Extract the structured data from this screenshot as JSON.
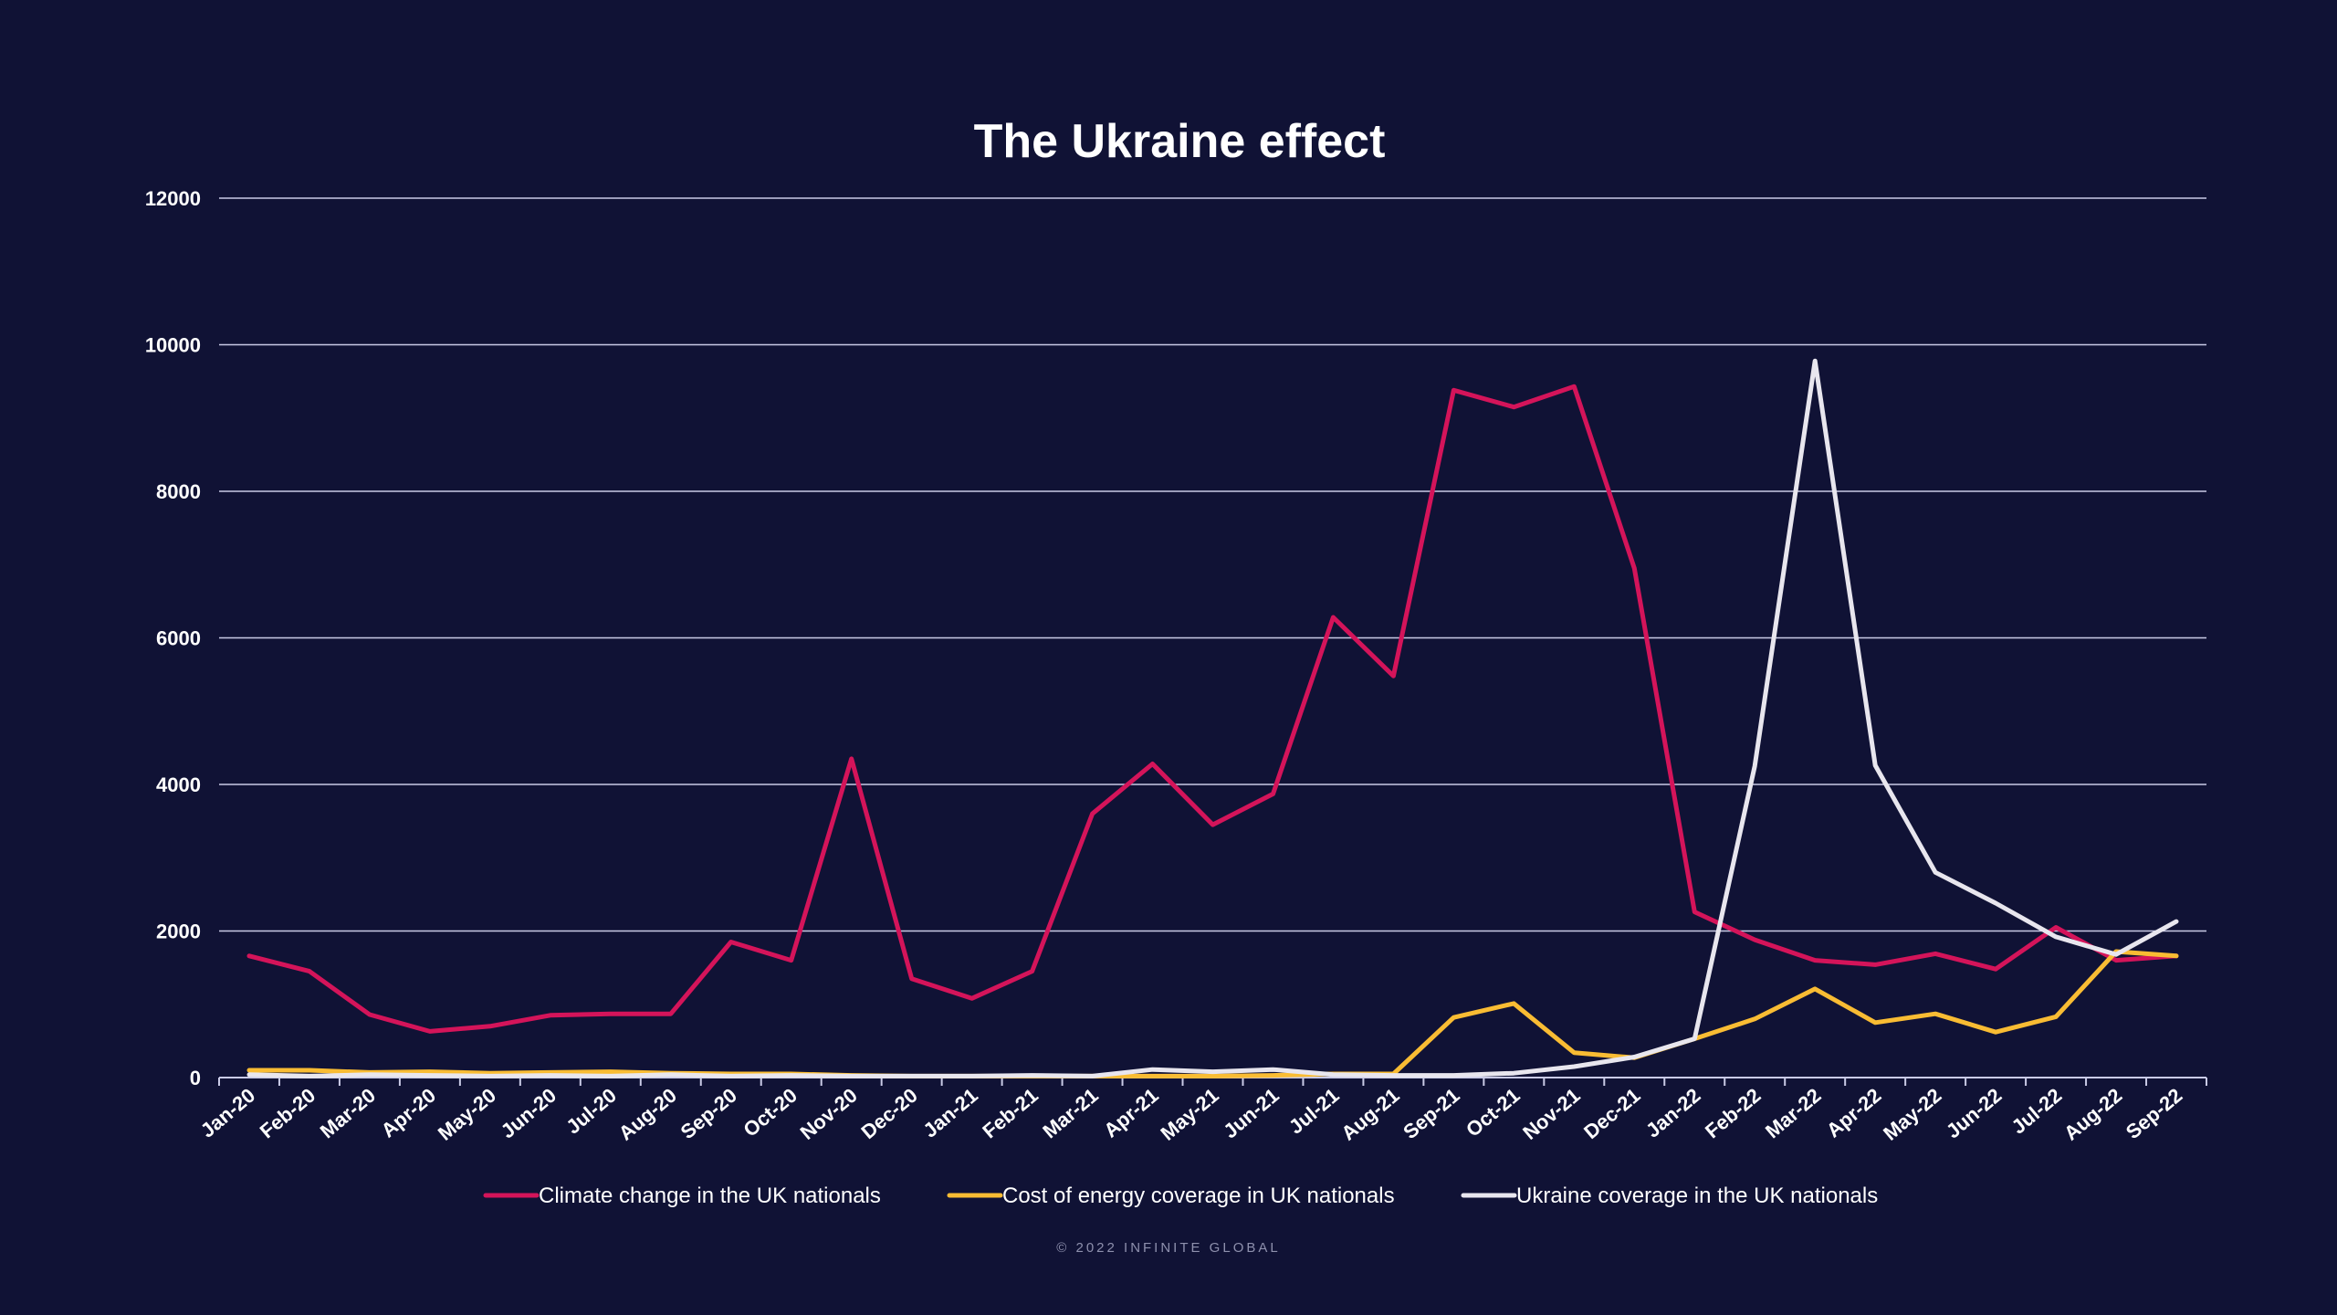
{
  "footer": {
    "copyright": "© 2022 INFINITE GLOBAL"
  },
  "colors": {
    "background": "#101235",
    "grid": "#c9cae6",
    "text": "#ffffff"
  },
  "chart_data": {
    "type": "line",
    "title": "The Ukraine effect",
    "xlabel": "",
    "ylabel": "",
    "ylim": [
      0,
      12000
    ],
    "yticks": [
      0,
      2000,
      4000,
      6000,
      8000,
      10000,
      12000
    ],
    "grid": true,
    "legend_position": "bottom",
    "categories": [
      "Jan-20",
      "Feb-20",
      "Mar-20",
      "Apr-20",
      "May-20",
      "Jun-20",
      "Jul-20",
      "Aug-20",
      "Sep-20",
      "Oct-20",
      "Nov-20",
      "Dec-20",
      "Jan-21",
      "Feb-21",
      "Mar-21",
      "Apr-21",
      "May-21",
      "Jun-21",
      "Jul-21",
      "Aug-21",
      "Sep-21",
      "Oct-21",
      "Nov-21",
      "Dec-21",
      "Jan-22",
      "Feb-22",
      "Mar-22",
      "Apr-22",
      "May-22",
      "Jun-22",
      "Jul-22",
      "Aug-22",
      "Sep-22"
    ],
    "series": [
      {
        "name": "Climate change in the UK nationals",
        "color": "#d4145a",
        "values": [
          1660,
          1450,
          860,
          630,
          700,
          850,
          870,
          870,
          1850,
          1600,
          4350,
          1350,
          1080,
          1450,
          3600,
          4280,
          3450,
          3870,
          6280,
          5480,
          9380,
          9150,
          9430,
          6950,
          2260,
          1880,
          1600,
          1540,
          1690,
          1480,
          2050,
          1600,
          1660
        ]
      },
      {
        "name": "Cost of energy coverage in UK nationals",
        "color": "#f9bc33",
        "values": [
          100,
          100,
          70,
          80,
          60,
          70,
          80,
          60,
          50,
          50,
          30,
          20,
          20,
          20,
          20,
          20,
          20,
          30,
          50,
          50,
          820,
          1010,
          340,
          270,
          530,
          800,
          1210,
          750,
          870,
          620,
          830,
          1720,
          1660
        ]
      },
      {
        "name": "Ukraine coverage in the UK nationals",
        "color": "#e8e6ee",
        "values": [
          40,
          20,
          40,
          30,
          20,
          30,
          20,
          40,
          20,
          30,
          20,
          20,
          20,
          30,
          20,
          110,
          80,
          110,
          40,
          30,
          30,
          60,
          150,
          280,
          530,
          4250,
          9780,
          4260,
          2800,
          2380,
          1920,
          1680,
          2130
        ]
      }
    ]
  }
}
